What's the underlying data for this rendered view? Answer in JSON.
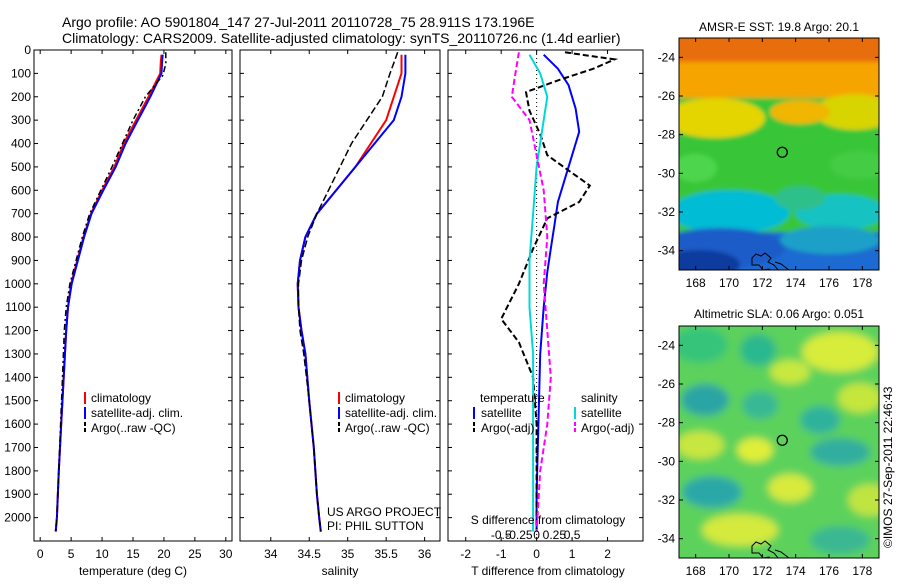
{
  "header": {
    "line1": "Argo profile: AO 5901804_147 27-Jul-2011 20110728_75 28.911S 173.196E",
    "line2": "Climatology: CARS2009. Satellite-adjusted climatology: synTS_20110726.nc (1.4d earlier)"
  },
  "colors": {
    "climatology": "#ff0000",
    "satellite": "#0000ff",
    "argo": "#000000",
    "sal_satellite": "#00d8d8",
    "sal_argo": "#ff00ff"
  },
  "chart_data": [
    {
      "type": "line",
      "id": "temperature",
      "xlabel": "temperature (deg C)",
      "ylabel": "",
      "xlim": [
        -1,
        31
      ],
      "ylim": [
        2100,
        0
      ],
      "xticks": [
        0,
        5,
        10,
        15,
        20,
        25,
        30
      ],
      "yticks": [
        0,
        100,
        200,
        300,
        400,
        500,
        600,
        700,
        800,
        900,
        1000,
        1100,
        1200,
        1300,
        1400,
        1500,
        1600,
        1700,
        1800,
        1900,
        2000
      ],
      "legend": [
        "climatology",
        "satellite-adj. clim.",
        "Argo(..raw -QC)"
      ],
      "series": [
        {
          "name": "climatology",
          "points": [
            [
              19.6,
              20
            ],
            [
              19.5,
              50
            ],
            [
              19.4,
              100
            ],
            [
              17.5,
              200
            ],
            [
              15.5,
              300
            ],
            [
              13.5,
              400
            ],
            [
              12,
              500
            ],
            [
              10,
              600
            ],
            [
              8.2,
              700
            ],
            [
              7,
              800
            ],
            [
              6,
              900
            ],
            [
              5,
              1000
            ],
            [
              4.5,
              1100
            ],
            [
              4.2,
              1200
            ],
            [
              3.8,
              1400
            ],
            [
              3.4,
              1600
            ],
            [
              3,
              1800
            ],
            [
              2.7,
              2000
            ],
            [
              2.5,
              2060
            ]
          ]
        },
        {
          "name": "satellite-adj. clim.",
          "points": [
            [
              19.8,
              20
            ],
            [
              19.7,
              50
            ],
            [
              19.6,
              100
            ],
            [
              17.8,
              200
            ],
            [
              15.8,
              300
            ],
            [
              13.8,
              400
            ],
            [
              12.2,
              500
            ],
            [
              10.2,
              600
            ],
            [
              8.3,
              700
            ],
            [
              7.1,
              800
            ],
            [
              6.1,
              900
            ],
            [
              5.1,
              1000
            ],
            [
              4.5,
              1100
            ],
            [
              4.2,
              1200
            ],
            [
              3.8,
              1400
            ],
            [
              3.4,
              1600
            ],
            [
              3,
              1800
            ],
            [
              2.7,
              2000
            ],
            [
              2.5,
              2060
            ]
          ]
        },
        {
          "name": "Argo(..raw -QC)",
          "points": [
            [
              20.3,
              10
            ],
            [
              20.3,
              60
            ],
            [
              19.8,
              110
            ],
            [
              17,
              200
            ],
            [
              15,
              300
            ],
            [
              13.3,
              400
            ],
            [
              11.6,
              500
            ],
            [
              9.8,
              600
            ],
            [
              8,
              700
            ],
            [
              6.8,
              800
            ],
            [
              5.8,
              900
            ],
            [
              4.8,
              1000
            ],
            [
              4.2,
              1100
            ],
            [
              3.9,
              1200
            ],
            [
              3.6,
              1400
            ],
            [
              3.3,
              1600
            ],
            [
              3,
              1800
            ],
            [
              2.7,
              2000
            ],
            [
              2.5,
              2060
            ]
          ]
        }
      ]
    },
    {
      "type": "line",
      "id": "salinity",
      "xlabel": "salinity",
      "ylabel": "",
      "xlim": [
        33.6,
        36.2
      ],
      "ylim": [
        2100,
        0
      ],
      "xticks": [
        34,
        34.5,
        35,
        35.5,
        36
      ],
      "legend": [
        "climatology",
        "satellite-adj. clim.",
        "Argo(..raw -QC)"
      ],
      "annotation": [
        "US ARGO PROJECT",
        "PI: PHIL SUTTON"
      ],
      "series": [
        {
          "name": "climatology",
          "points": [
            [
              35.7,
              20
            ],
            [
              35.7,
              100
            ],
            [
              35.6,
              200
            ],
            [
              35.5,
              300
            ],
            [
              35.3,
              400
            ],
            [
              35.1,
              500
            ],
            [
              34.85,
              600
            ],
            [
              34.6,
              700
            ],
            [
              34.45,
              800
            ],
            [
              34.38,
              900
            ],
            [
              34.35,
              1000
            ],
            [
              34.36,
              1100
            ],
            [
              34.4,
              1200
            ],
            [
              34.45,
              1300
            ],
            [
              34.5,
              1500
            ],
            [
              34.56,
              1700
            ],
            [
              34.6,
              1900
            ],
            [
              34.63,
              2000
            ],
            [
              34.65,
              2060
            ]
          ]
        },
        {
          "name": "satellite-adj. clim.",
          "points": [
            [
              35.75,
              20
            ],
            [
              35.75,
              100
            ],
            [
              35.7,
              200
            ],
            [
              35.6,
              300
            ],
            [
              35.35,
              400
            ],
            [
              35.1,
              500
            ],
            [
              34.85,
              600
            ],
            [
              34.6,
              700
            ],
            [
              34.45,
              800
            ],
            [
              34.38,
              900
            ],
            [
              34.35,
              1000
            ],
            [
              34.36,
              1100
            ],
            [
              34.4,
              1200
            ],
            [
              34.45,
              1300
            ],
            [
              34.5,
              1500
            ],
            [
              34.56,
              1700
            ],
            [
              34.6,
              1900
            ],
            [
              34.63,
              2000
            ],
            [
              34.65,
              2060
            ]
          ]
        },
        {
          "name": "Argo(..raw -QC)",
          "points": [
            [
              35.65,
              10
            ],
            [
              35.55,
              100
            ],
            [
              35.45,
              200
            ],
            [
              35.25,
              300
            ],
            [
              35.05,
              400
            ],
            [
              34.9,
              500
            ],
            [
              34.75,
              600
            ],
            [
              34.6,
              700
            ],
            [
              34.48,
              800
            ],
            [
              34.4,
              900
            ],
            [
              34.36,
              1000
            ],
            [
              34.36,
              1100
            ],
            [
              34.38,
              1200
            ],
            [
              34.43,
              1300
            ],
            [
              34.5,
              1500
            ],
            [
              34.56,
              1700
            ],
            [
              34.6,
              1900
            ],
            [
              34.63,
              2000
            ],
            [
              34.65,
              2060
            ]
          ]
        }
      ]
    },
    {
      "type": "line",
      "id": "difference",
      "xlabel": "T difference from climatology",
      "xlabel_top": "S difference from climatology",
      "xlim": [
        -2.5,
        3
      ],
      "ylim": [
        2100,
        0
      ],
      "xticks": [
        -2,
        -1,
        0,
        1,
        2
      ],
      "sticks": [
        -0.5,
        -0.25,
        0,
        0.25,
        0.5
      ],
      "sticks_label": [
        "-0.5",
        "-0.25",
        "0",
        "0.25",
        "0.5"
      ],
      "legend_temperature": [
        "temperature",
        "satellite",
        "Argo(-adj)"
      ],
      "legend_salinity": [
        "salinity",
        "satellite",
        "Argo(-adj)"
      ],
      "series": [
        {
          "name": "temperature satellite",
          "points": [
            [
              0.2,
              20
            ],
            [
              0.6,
              80
            ],
            [
              0.9,
              150
            ],
            [
              1.1,
              250
            ],
            [
              1.2,
              350
            ],
            [
              1.0,
              450
            ],
            [
              0.8,
              550
            ],
            [
              0.6,
              650
            ],
            [
              0.5,
              750
            ],
            [
              0.4,
              850
            ],
            [
              0.3,
              950
            ],
            [
              0.2,
              1100
            ],
            [
              0.1,
              1300
            ],
            [
              0.05,
              1600
            ],
            [
              0,
              1900
            ],
            [
              0,
              2060
            ]
          ]
        },
        {
          "name": "temperature Argo(-adj)",
          "points": [
            [
              0.8,
              10
            ],
            [
              2.2,
              40
            ],
            [
              1.6,
              80
            ],
            [
              0.6,
              130
            ],
            [
              -0.3,
              180
            ],
            [
              -0.2,
              260
            ],
            [
              0.1,
              360
            ],
            [
              0.3,
              450
            ],
            [
              1.5,
              580
            ],
            [
              1.2,
              650
            ],
            [
              0.3,
              720
            ],
            [
              -0.1,
              850
            ],
            [
              -0.5,
              1000
            ],
            [
              -1.0,
              1150
            ],
            [
              -0.5,
              1250
            ],
            [
              -0.1,
              1400
            ],
            [
              0,
              1600
            ],
            [
              0,
              2060
            ]
          ]
        },
        {
          "name": "salinity satellite",
          "points": [
            [
              -0.1,
              20
            ],
            [
              0.05,
              100
            ],
            [
              0.15,
              200
            ],
            [
              0.1,
              300
            ],
            [
              0,
              500
            ],
            [
              -0.05,
              700
            ],
            [
              -0.1,
              900
            ],
            [
              -0.1,
              1100
            ],
            [
              -0.05,
              1300
            ],
            [
              -0.05,
              1600
            ],
            [
              -0.05,
              1900
            ],
            [
              -0.05,
              2060
            ]
          ]
        },
        {
          "name": "salinity Argo(-adj)",
          "points": [
            [
              -0.25,
              10
            ],
            [
              -0.3,
              100
            ],
            [
              -0.35,
              200
            ],
            [
              -0.1,
              300
            ],
            [
              0,
              450
            ],
            [
              0.1,
              600
            ],
            [
              0.15,
              800
            ],
            [
              0.1,
              1000
            ],
            [
              0.15,
              1200
            ],
            [
              0.2,
              1400
            ],
            [
              0.15,
              1600
            ],
            [
              0.05,
              1800
            ],
            [
              0,
              2060
            ]
          ]
        }
      ]
    },
    {
      "type": "heatmap",
      "id": "sst-map",
      "title": "AMSR-E SST: 19.8 Argo: 20.1",
      "xticks": [
        "168",
        "170",
        "172",
        "174",
        "176",
        "178"
      ],
      "yticks": [
        "-24",
        "-26",
        "-28",
        "-30",
        "-32",
        "-34"
      ],
      "xlim": [
        167,
        179
      ],
      "ylim": [
        -35,
        -23
      ],
      "marker": [
        173.196,
        -28.911
      ]
    },
    {
      "type": "heatmap",
      "id": "sla-map",
      "title": "Altimetric SLA: 0.06 Argo: 0.051",
      "xticks": [
        "168",
        "170",
        "172",
        "174",
        "176",
        "178"
      ],
      "yticks": [
        "-24",
        "-26",
        "-28",
        "-30",
        "-32",
        "-34"
      ],
      "xlim": [
        167,
        179
      ],
      "ylim": [
        -35,
        -23
      ],
      "marker": [
        173.196,
        -28.911
      ]
    }
  ],
  "footer": {
    "stamp": "©IMOS 27-Sep-2011 22:46:43"
  }
}
